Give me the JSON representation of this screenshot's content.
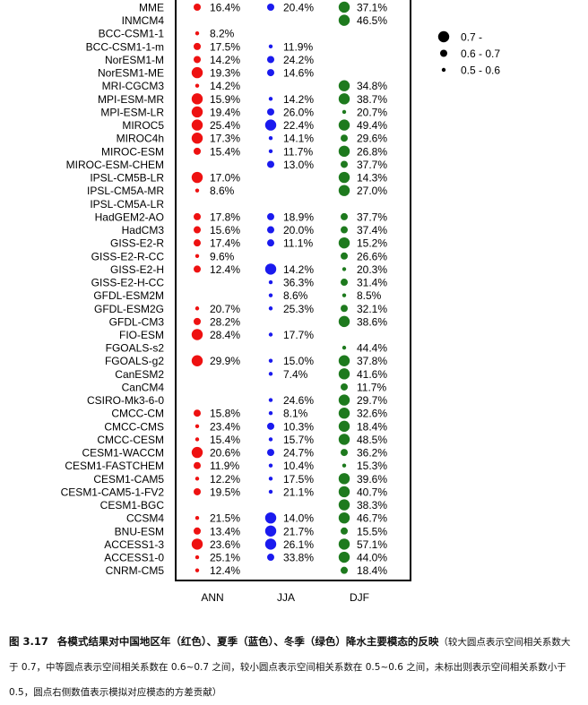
{
  "chart_data": {
    "type": "bubble-table",
    "models": [
      "MME",
      "INMCM4",
      "BCC-CSM1-1",
      "BCC-CSM1-1-m",
      "NorESM1-M",
      "NorESM1-ME",
      "MRI-CGCM3",
      "MPI-ESM-MR",
      "MPI-ESM-LR",
      "MIROC5",
      "MIROC4h",
      "MIROC-ESM",
      "MIROC-ESM-CHEM",
      "IPSL-CM5B-LR",
      "IPSL-CM5A-MR",
      "IPSL-CM5A-LR",
      "HadGEM2-AO",
      "HadCM3",
      "GISS-E2-R",
      "GISS-E2-R-CC",
      "GISS-E2-H",
      "GISS-E2-H-CC",
      "GFDL-ESM2M",
      "GFDL-ESM2G",
      "GFDL-CM3",
      "FIO-ESM",
      "FGOALS-s2",
      "FGOALS-g2",
      "CanESM2",
      "CanCM4",
      "CSIRO-Mk3-6-0",
      "CMCC-CM",
      "CMCC-CMS",
      "CMCC-CESM",
      "CESM1-WACCM",
      "CESM1-FASTCHEM",
      "CESM1-CAM5",
      "CESM1-CAM5-1-FV2",
      "CESM1-BGC",
      "CCSM4",
      "BNU-ESM",
      "ACCESS1-3",
      "ACCESS1-0",
      "CNRM-CM5"
    ],
    "categories": [
      "ANN",
      "JJA",
      "DJF"
    ],
    "series": [
      {
        "name": "ANN",
        "color": "#ee1111",
        "size_class": [
          1,
          null,
          0,
          1,
          1,
          2,
          0,
          2,
          2,
          2,
          2,
          1,
          null,
          2,
          0,
          null,
          1,
          1,
          1,
          0,
          1,
          null,
          null,
          0,
          1,
          2,
          null,
          2,
          null,
          null,
          null,
          1,
          0,
          0,
          2,
          1,
          0,
          1,
          null,
          0,
          1,
          2,
          0,
          0
        ],
        "values": [
          "16.4%",
          "",
          "8.2%",
          "17.5%",
          "14.2%",
          "19.3%",
          "14.2%",
          "15.9%",
          "19.4%",
          "25.4%",
          "17.3%",
          "15.4%",
          "",
          "17.0%",
          "8.6%",
          "",
          "17.8%",
          "15.6%",
          "17.4%",
          "9.6%",
          "12.4%",
          "",
          "",
          "20.7%",
          "28.2%",
          "28.4%",
          "",
          "29.9%",
          "",
          "",
          "",
          "15.8%",
          "23.4%",
          "15.4%",
          "20.6%",
          "11.9%",
          "12.2%",
          "19.5%",
          "",
          "21.5%",
          "13.4%",
          "23.6%",
          "25.1%",
          "12.4%"
        ]
      },
      {
        "name": "JJA",
        "color": "#1a1aee",
        "size_class": [
          1,
          null,
          null,
          0,
          1,
          1,
          null,
          0,
          1,
          2,
          0,
          0,
          1,
          null,
          null,
          null,
          1,
          1,
          1,
          null,
          2,
          0,
          0,
          0,
          null,
          0,
          null,
          0,
          0,
          null,
          0,
          0,
          1,
          0,
          1,
          0,
          0,
          0,
          null,
          2,
          2,
          2,
          1,
          null
        ],
        "values": [
          "20.4%",
          "",
          "",
          "11.9%",
          "24.2%",
          "14.6%",
          "",
          "14.2%",
          "26.0%",
          "22.4%",
          "14.1%",
          "11.7%",
          "13.0%",
          "",
          "",
          "",
          "18.9%",
          "20.0%",
          "11.1%",
          "",
          "14.2%",
          "36.3%",
          "8.6%",
          "25.3%",
          "",
          "17.7%",
          "",
          "15.0%",
          "7.4%",
          "",
          "24.6%",
          "8.1%",
          "10.3%",
          "15.7%",
          "24.7%",
          "10.4%",
          "17.5%",
          "21.1%",
          "",
          "14.0%",
          "21.7%",
          "26.1%",
          "33.8%",
          ""
        ]
      },
      {
        "name": "DJF",
        "color": "#1e7a1e",
        "size_class": [
          2,
          2,
          null,
          null,
          null,
          null,
          2,
          2,
          0,
          2,
          1,
          2,
          1,
          2,
          2,
          null,
          1,
          1,
          2,
          1,
          0,
          1,
          0,
          1,
          2,
          null,
          0,
          2,
          2,
          1,
          2,
          2,
          2,
          2,
          1,
          0,
          2,
          2,
          2,
          2,
          1,
          2,
          2,
          1
        ],
        "values": [
          "37.1%",
          "46.5%",
          "",
          "",
          "",
          "",
          "34.8%",
          "38.7%",
          "20.7%",
          "49.4%",
          "29.6%",
          "26.8%",
          "37.7%",
          "14.3%",
          "27.0%",
          "",
          "37.7%",
          "37.4%",
          "15.2%",
          "26.6%",
          "20.3%",
          "31.4%",
          "8.5%",
          "32.1%",
          "38.6%",
          "",
          "44.4%",
          "37.8%",
          "41.6%",
          "11.7%",
          "29.7%",
          "32.6%",
          "18.4%",
          "48.5%",
          "36.2%",
          "15.3%",
          "39.6%",
          "40.7%",
          "38.3%",
          "46.7%",
          "15.5%",
          "57.1%",
          "44.0%",
          "18.4%"
        ]
      }
    ],
    "legend": {
      "position": "top-right",
      "items": [
        {
          "label": "0.7 -",
          "size_class": 2
        },
        {
          "label": "0.6 - 0.7",
          "size_class": 1
        },
        {
          "label": "0.5 - 0.6",
          "size_class": 0
        }
      ]
    }
  },
  "caption": {
    "number": "图 3.17",
    "title": "各模式结果对中国地区年（红色）、夏季（蓝色）、冬季（绿色）降水主要模态的反映",
    "note": "（较大圆点表示空间相关系数大于 0.7，中等圆点表示空间相关系数在 0.6~0.7 之间，较小圆点表示空间相关系数在 0.5~0.6 之间，未标出则表示空间相关系数小于 0.5，圆点右侧数值表示模拟对应模态的方差贡献）"
  }
}
